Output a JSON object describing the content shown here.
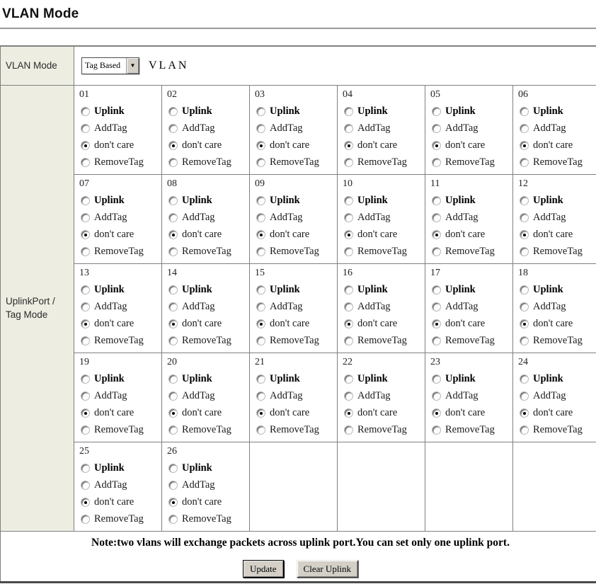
{
  "title": "VLAN Mode",
  "vlan_mode": {
    "label": "VLAN Mode",
    "selected": "Tag Based",
    "suffix_text": "VLAN"
  },
  "uplink": {
    "label": "UplinkPort / Tag Mode"
  },
  "ports": {
    "numbers": [
      "01",
      "02",
      "03",
      "04",
      "05",
      "06",
      "07",
      "08",
      "09",
      "10",
      "11",
      "12",
      "13",
      "14",
      "15",
      "16",
      "17",
      "18",
      "19",
      "20",
      "21",
      "22",
      "23",
      "24",
      "25",
      "26"
    ],
    "options": [
      "Uplink",
      "AddTag",
      "don't care",
      "RemoveTag"
    ],
    "selected_option": "don't care",
    "columns": 6
  },
  "note": "Note:two vlans will exchange packets across uplink port.You can set only one uplink port.",
  "buttons": {
    "update": "Update",
    "clear_uplink": "Clear Uplink"
  },
  "icons": {
    "dropdown_arrow": "▼"
  },
  "colors": {
    "label_bg": "#EDEDE2",
    "border": "#808080",
    "button_face": "#D4D0C8"
  }
}
